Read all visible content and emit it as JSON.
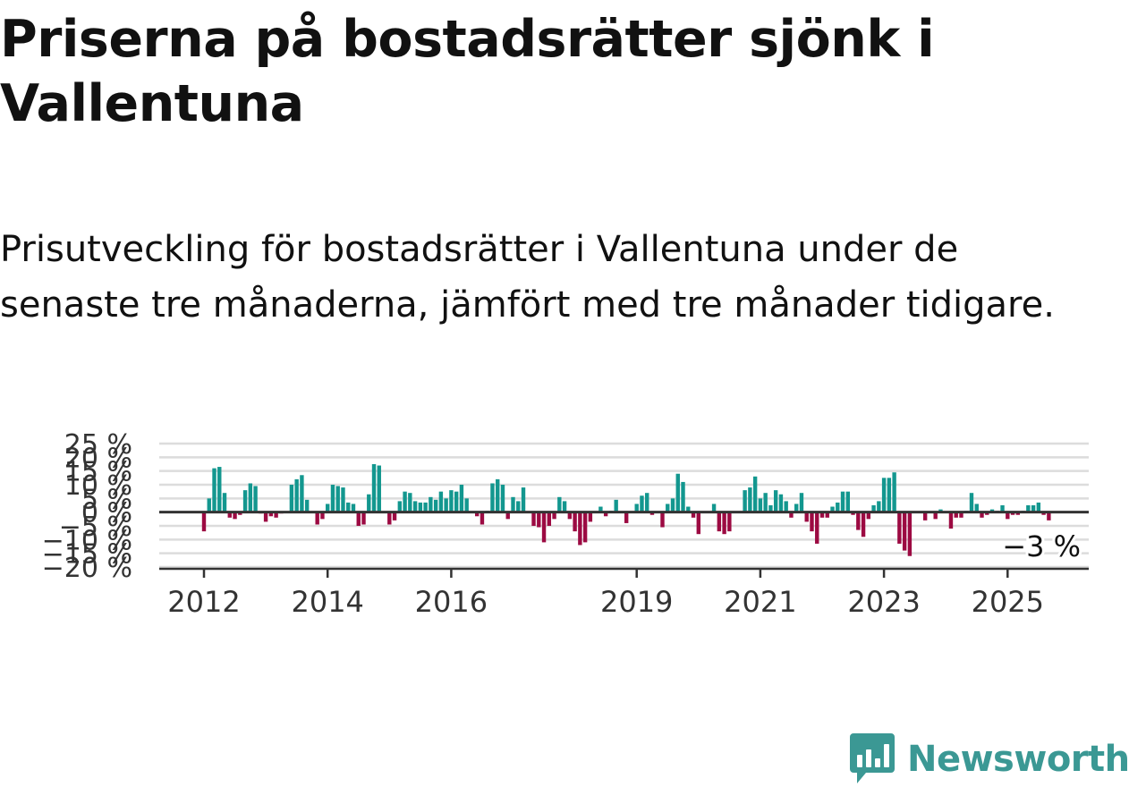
{
  "title": "Priserna på bostadsrätter sjönk i Vallentuna",
  "subtitle": "Prisutveckling för bostadsrätter i Vallentuna under de senaste tre månaderna, jämfört med tre månader tidigare.",
  "brand": {
    "name": "Newsworthy",
    "color": "#3b9894",
    "icon": "newsworthy-logo-icon"
  },
  "colors": {
    "positive": "#13978f",
    "negative": "#9c0a42",
    "grid": "#dcdcdc",
    "axis": "#333333"
  },
  "chart_data": {
    "type": "bar",
    "ylabel": "",
    "ylim": [
      -20,
      25
    ],
    "yticks": [
      25,
      20,
      15,
      10,
      5,
      0,
      -5,
      -10,
      -15,
      -20
    ],
    "ytick_labels": [
      "25 %",
      "20 %",
      "15 %",
      "10 %",
      "5 %",
      "0 %",
      "−5 %",
      "−10 %",
      "−15 %",
      "−20 %"
    ],
    "xticks": [
      2012,
      2014,
      2016,
      2019,
      2021,
      2023,
      2025
    ],
    "x_start": "2012-01",
    "annotation": "−3 %",
    "grid": true,
    "values": [
      -7,
      5,
      16,
      16.5,
      7,
      -2,
      -2.5,
      -1,
      8,
      10.5,
      9.5,
      -0.5,
      -3.5,
      -1.5,
      -2,
      -0.5,
      0,
      10,
      12,
      13.5,
      4.5,
      0,
      -4.5,
      -2.5,
      3,
      10,
      9.5,
      9,
      3.5,
      3,
      -5,
      -4.5,
      6.5,
      17.5,
      17,
      0,
      -4.5,
      -3,
      4,
      7.5,
      7,
      4,
      3.5,
      3.5,
      5.5,
      4.5,
      7.5,
      5,
      8,
      7.5,
      10,
      5,
      0,
      -1.5,
      -4.5,
      0.5,
      10.5,
      12,
      10,
      -2.5,
      5.5,
      4,
      9,
      0,
      -5,
      -5.5,
      -11,
      -5,
      -2.5,
      5.5,
      4,
      -2.5,
      -7,
      -12,
      -11,
      -3.5,
      0,
      2,
      -1.5,
      0.5,
      4.5,
      0,
      -4,
      0,
      3,
      6,
      7,
      -1,
      0,
      -5.5,
      3,
      5,
      14,
      11,
      2,
      -2,
      -8,
      0,
      0,
      3,
      -7,
      -8,
      -7,
      0,
      0,
      8,
      9,
      13,
      5,
      7,
      2.5,
      8,
      6.5,
      4,
      -2,
      3,
      7,
      -3.5,
      -7,
      -11.5,
      -2,
      -2,
      2,
      3.5,
      7.5,
      7.5,
      -1,
      -6.5,
      -9,
      -2.5,
      2.5,
      4,
      12.5,
      12.5,
      14.5,
      -11.5,
      -14,
      -16,
      0,
      0,
      -3,
      0,
      -2.5,
      1,
      0,
      -6,
      -2,
      -2,
      0.5,
      7,
      3,
      -2,
      -1,
      1,
      0.5,
      2.5,
      -2.5,
      -1,
      -1,
      0.5,
      2.5,
      2.5,
      3.5,
      -1,
      -3
    ]
  }
}
